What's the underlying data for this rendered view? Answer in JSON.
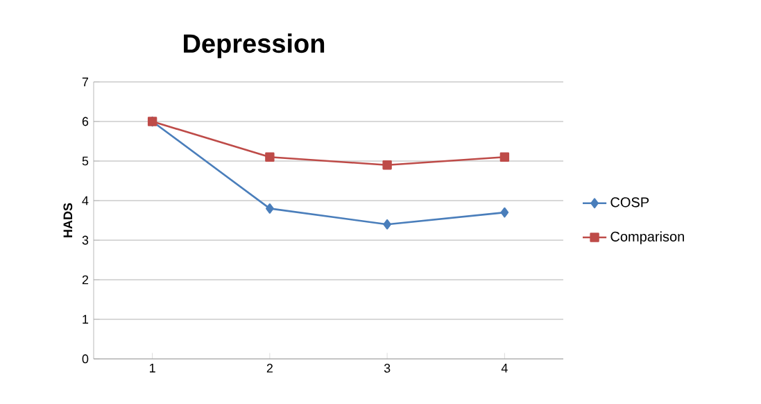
{
  "chart_data": {
    "type": "line",
    "title": "Depression",
    "ylabel": "HADS",
    "categories": [
      "1",
      "2",
      "3",
      "4"
    ],
    "series": [
      {
        "name": "COSP",
        "color": "#4a7ebb",
        "values": [
          6,
          3.8,
          3.4,
          3.7
        ],
        "marker": "diamond"
      },
      {
        "name": "Comparison",
        "color": "#be4b48",
        "values": [
          6,
          5.1,
          4.9,
          5.1
        ],
        "marker": "square"
      }
    ],
    "ylim": [
      0,
      7
    ],
    "yticks": [
      0,
      1,
      2,
      3,
      4,
      5,
      6,
      7
    ],
    "grid": "y",
    "legend": "right",
    "line_style": "solid"
  }
}
